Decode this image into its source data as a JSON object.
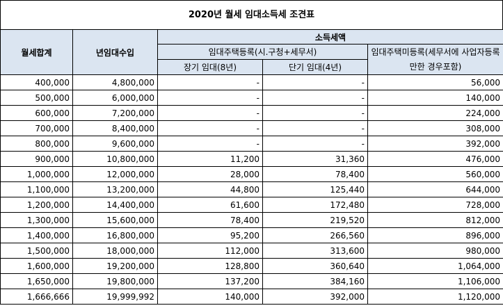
{
  "title": "2020년 월세 임대소득세 조견표",
  "headers": {
    "monthly_rent_total": "월세합계",
    "annual_rent_income": "년임대수입",
    "income_tax_amount": "소득세액",
    "registered": "임대주택등록(시.구청+세무서)",
    "long_term": "장기 임대(8년)",
    "short_term": "단기 임대(4년)",
    "unregistered": "임대주택미등록(세무서에 사업자등록만한 경우포함)"
  },
  "rows": [
    {
      "rent": "400,000",
      "annual": "4,800,000",
      "long": "-",
      "short": "-",
      "unreg": "56,000"
    },
    {
      "rent": "500,000",
      "annual": "6,000,000",
      "long": "-",
      "short": "-",
      "unreg": "140,000"
    },
    {
      "rent": "600,000",
      "annual": "7,200,000",
      "long": "-",
      "short": "-",
      "unreg": "224,000"
    },
    {
      "rent": "700,000",
      "annual": "8,400,000",
      "long": "-",
      "short": "-",
      "unreg": "308,000"
    },
    {
      "rent": "800,000",
      "annual": "9,600,000",
      "long": "-",
      "short": "-",
      "unreg": "392,000"
    },
    {
      "rent": "900,000",
      "annual": "10,800,000",
      "long": "11,200",
      "short": "31,360",
      "unreg": "476,000"
    },
    {
      "rent": "1,000,000",
      "annual": "12,000,000",
      "long": "28,000",
      "short": "78,400",
      "unreg": "560,000"
    },
    {
      "rent": "1,100,000",
      "annual": "13,200,000",
      "long": "44,800",
      "short": "125,440",
      "unreg": "644,000"
    },
    {
      "rent": "1,200,000",
      "annual": "14,400,000",
      "long": "61,600",
      "short": "172,480",
      "unreg": "728,000"
    },
    {
      "rent": "1,300,000",
      "annual": "15,600,000",
      "long": "78,400",
      "short": "219,520",
      "unreg": "812,000"
    },
    {
      "rent": "1,400,000",
      "annual": "16,800,000",
      "long": "95,200",
      "short": "266,560",
      "unreg": "896,000"
    },
    {
      "rent": "1,500,000",
      "annual": "18,000,000",
      "long": "112,000",
      "short": "313,600",
      "unreg": "980,000"
    },
    {
      "rent": "1,600,000",
      "annual": "19,200,000",
      "long": "128,800",
      "short": "360,640",
      "unreg": "1,064,000"
    },
    {
      "rent": "1,650,000",
      "annual": "19,800,000",
      "long": "137,200",
      "short": "384,160",
      "unreg": "1,106,000"
    },
    {
      "rent": "1,666,666",
      "annual": "19,999,992",
      "long": "140,000",
      "short": "392,000",
      "unreg": "1,120,000"
    }
  ]
}
